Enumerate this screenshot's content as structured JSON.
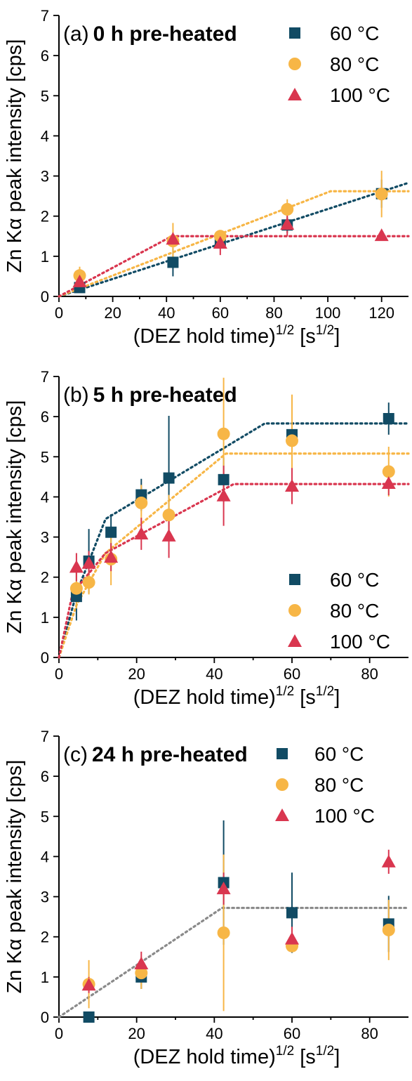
{
  "colors": {
    "s60": "#114b64",
    "s80": "#f7b646",
    "s100": "#d9364f",
    "fit_gray": "#8a8a8a"
  },
  "chart_data": [
    {
      "type": "scatter",
      "panel_label": "(a)",
      "title": "0 h pre-heated",
      "xlabel": "(DEZ hold time)",
      "xlabel_sup1": "1/2",
      "xlabel_unit_open": "[s",
      "xlabel_sup2": "1/2",
      "xlabel_unit_close": "]",
      "ylabel": "Zn Kα peak intensity [cps]",
      "xlim": [
        0,
        130
      ],
      "ylim": [
        0,
        7
      ],
      "xticks": [
        0,
        20,
        40,
        60,
        80,
        100,
        120
      ],
      "yticks": [
        0,
        1,
        2,
        3,
        4,
        5,
        6,
        7
      ],
      "legend_position": "top-right",
      "series": [
        {
          "name": "60 °C",
          "marker": "square",
          "color": "#114b64",
          "x": [
            7.7,
            42.4,
            60,
            84.9,
            120
          ],
          "y": [
            0.22,
            0.85,
            1.4,
            1.78,
            2.56
          ],
          "err": [
            0.1,
            0.35,
            0.15,
            0.2,
            0.35
          ]
        },
        {
          "name": "80 °C",
          "marker": "circle",
          "color": "#f7b646",
          "x": [
            7.7,
            42.4,
            60,
            84.9,
            120
          ],
          "y": [
            0.52,
            1.38,
            1.5,
            2.17,
            2.55
          ],
          "err": [
            0.22,
            0.45,
            0.15,
            0.25,
            0.58
          ]
        },
        {
          "name": "100 °C",
          "marker": "triangle",
          "color": "#d9364f",
          "x": [
            7.7,
            42.4,
            60,
            84.9,
            120
          ],
          "y": [
            0.37,
            1.43,
            1.33,
            1.8,
            1.52
          ],
          "err": [
            0.15,
            0.12,
            0.3,
            0.3,
            0.05
          ]
        }
      ],
      "fits": [
        {
          "color": "#114b64",
          "x": [
            0,
            130
          ],
          "y": [
            0,
            2.83
          ]
        },
        {
          "color": "#f7b646",
          "x": [
            0,
            101,
            130
          ],
          "y": [
            0,
            2.62,
            2.62
          ]
        },
        {
          "color": "#d9364f",
          "x": [
            0,
            42,
            130
          ],
          "y": [
            0,
            1.5,
            1.5
          ]
        }
      ]
    },
    {
      "type": "scatter",
      "panel_label": "(b)",
      "title": "5 h pre-heated",
      "xlabel": "(DEZ hold time)",
      "xlabel_sup1": "1/2",
      "xlabel_unit_open": "[s",
      "xlabel_sup2": "1/2",
      "xlabel_unit_close": "]",
      "ylabel": "Zn Kα peak intensity [cps]",
      "xlim": [
        0,
        90
      ],
      "ylim": [
        0,
        7
      ],
      "xticks": [
        0,
        20,
        40,
        60,
        80
      ],
      "yticks": [
        0,
        1,
        2,
        3,
        4,
        5,
        6,
        7
      ],
      "legend_position": "bottom-right",
      "series": [
        {
          "name": "60 °C",
          "marker": "square",
          "color": "#114b64",
          "x": [
            4.5,
            7.7,
            13.4,
            21.2,
            28.3,
            42.4,
            60,
            84.9
          ],
          "y": [
            1.52,
            2.4,
            3.12,
            4.05,
            4.47,
            4.43,
            5.55,
            5.95
          ],
          "err": [
            0.6,
            0.8,
            0.45,
            0.4,
            1.55,
            0.55,
            0.3,
            0.4
          ]
        },
        {
          "name": "80 °C",
          "marker": "circle",
          "color": "#f7b646",
          "x": [
            4.5,
            7.7,
            13.4,
            21.2,
            28.3,
            42.4,
            60,
            84.9
          ],
          "y": [
            1.72,
            1.87,
            2.45,
            3.85,
            3.55,
            5.57,
            5.4,
            4.63
          ],
          "err": [
            0.5,
            0.3,
            0.65,
            0.45,
            0.5,
            1.4,
            1.15,
            0.62
          ]
        },
        {
          "name": "100 °C",
          "marker": "triangle",
          "color": "#d9364f",
          "x": [
            4.5,
            7.7,
            13.4,
            21.2,
            28.3,
            42.4,
            60,
            84.9
          ],
          "y": [
            2.25,
            2.35,
            2.5,
            3.08,
            3.03,
            4.03,
            4.27,
            4.34
          ],
          "err": [
            0.35,
            0.3,
            0.35,
            0.4,
            0.55,
            0.75,
            0.45,
            0.3
          ]
        }
      ],
      "fits": [
        {
          "color": "#114b64",
          "x": [
            0,
            4.5,
            12,
            53,
            90
          ],
          "y": [
            0,
            1.6,
            3.45,
            5.83,
            5.83
          ]
        },
        {
          "color": "#f7b646",
          "x": [
            0,
            4.5,
            12,
            43,
            90
          ],
          "y": [
            0,
            1.3,
            2.6,
            5.08,
            5.08
          ]
        },
        {
          "color": "#d9364f",
          "x": [
            0,
            3.5,
            12,
            45,
            90
          ],
          "y": [
            0,
            1.6,
            2.6,
            4.32,
            4.32
          ]
        }
      ]
    },
    {
      "type": "scatter",
      "panel_label": "(c)",
      "title": "24 h pre-heated",
      "xlabel": "(DEZ hold time)",
      "xlabel_sup1": "1/2",
      "xlabel_unit_open": "[s",
      "xlabel_sup2": "1/2",
      "xlabel_unit_close": "]",
      "ylabel": "Zn Kα peak intensity [cps]",
      "xlim": [
        0,
        90
      ],
      "ylim": [
        0,
        7
      ],
      "xticks": [
        0,
        20,
        40,
        60,
        80
      ],
      "yticks": [
        0,
        1,
        2,
        3,
        4,
        5,
        6,
        7
      ],
      "legend_position": "top-right",
      "series": [
        {
          "name": "60 °C",
          "marker": "square",
          "color": "#114b64",
          "x": [
            7.7,
            21.2,
            42.4,
            60,
            84.9
          ],
          "y": [
            0.0,
            1.0,
            3.35,
            2.6,
            2.32
          ],
          "err": [
            0.05,
            0.3,
            1.55,
            1.0,
            0.7
          ]
        },
        {
          "name": "80 °C",
          "marker": "circle",
          "color": "#f7b646",
          "x": [
            7.7,
            21.2,
            42.4,
            60,
            84.9
          ],
          "y": [
            0.82,
            1.1,
            2.1,
            1.77,
            2.17
          ],
          "err": [
            0.6,
            0.4,
            1.95,
            0.15,
            0.75
          ]
        },
        {
          "name": "100 °C",
          "marker": "triangle",
          "color": "#d9364f",
          "x": [
            7.7,
            21.2,
            42.4,
            60,
            84.9
          ],
          "y": [
            0.8,
            1.33,
            3.2,
            1.95,
            3.87
          ],
          "err": [
            0.2,
            0.3,
            0.4,
            0.3,
            0.3
          ]
        }
      ],
      "fits": [
        {
          "color": "#8a8a8a",
          "x": [
            0,
            42,
            90
          ],
          "y": [
            0,
            2.72,
            2.72
          ]
        }
      ]
    }
  ]
}
